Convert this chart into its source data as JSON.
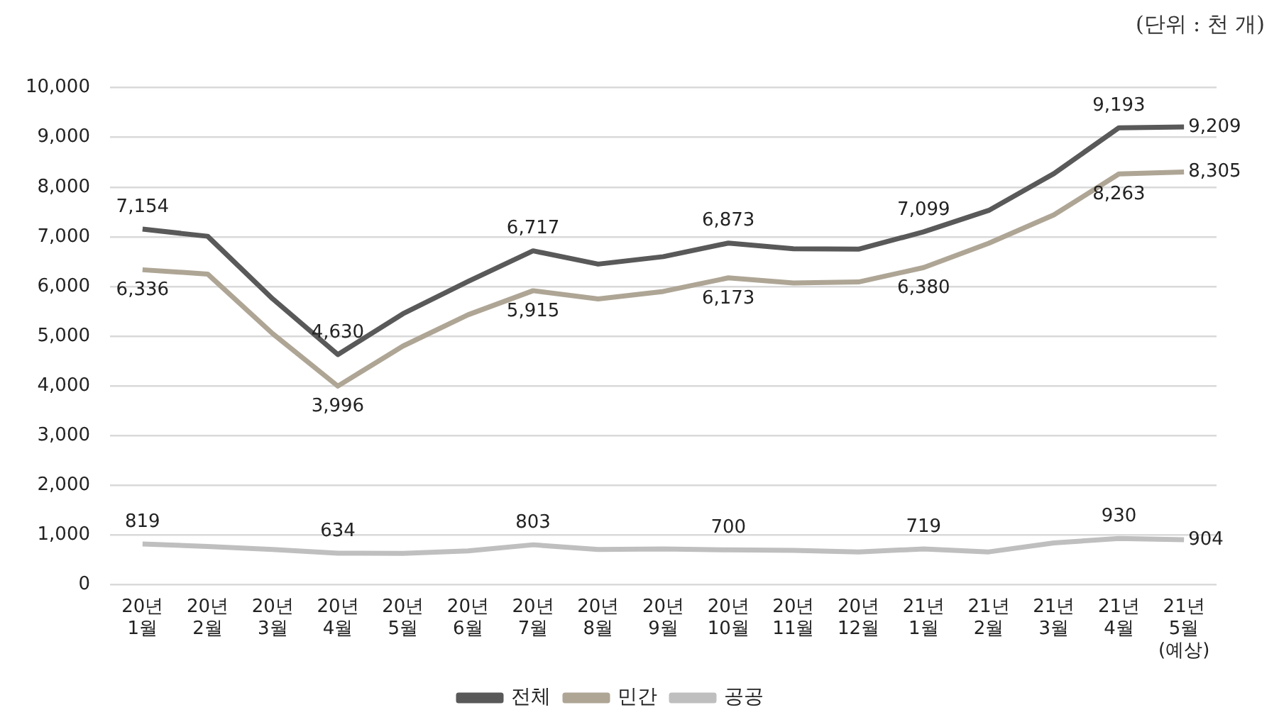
{
  "chart_data": {
    "type": "line",
    "categories": [
      "20년 1월",
      "20년 2월",
      "20년 3월",
      "20년 4월",
      "20년 5월",
      "20년 6월",
      "20년 7월",
      "20년 8월",
      "20년 9월",
      "20년 10월",
      "20년 11월",
      "20년 12월",
      "21년 1월",
      "21년 2월",
      "21년 3월",
      "21년 4월",
      "21년 5월 (예상)"
    ],
    "series": [
      {
        "name": "전체",
        "color": "#595959",
        "values": [
          7154,
          7010,
          5750,
          4630,
          5450,
          6100,
          6717,
          6450,
          6600,
          6873,
          6760,
          6750,
          7099,
          7530,
          8270,
          9193,
          9209
        ],
        "value_labels": [
          "7,154",
          null,
          null,
          "4,630",
          null,
          null,
          "6,717",
          null,
          null,
          "6,873",
          null,
          null,
          "7,099",
          null,
          null,
          "9,193",
          "9,209"
        ]
      },
      {
        "name": "민간",
        "color": "#aea595",
        "values": [
          6336,
          6250,
          5050,
          3996,
          4800,
          5430,
          5915,
          5750,
          5900,
          6173,
          6070,
          6090,
          6380,
          6870,
          7440,
          8263,
          8305
        ],
        "value_labels": [
          "6,336",
          null,
          null,
          "3,996",
          null,
          null,
          "5,915",
          null,
          null,
          "6,173",
          null,
          null,
          "6,380",
          null,
          null,
          "8,263",
          "8,305"
        ]
      },
      {
        "name": "공공",
        "color": "#bfbfbf",
        "values": [
          819,
          770,
          710,
          634,
          630,
          680,
          803,
          710,
          720,
          700,
          690,
          660,
          719,
          660,
          840,
          930,
          904
        ],
        "value_labels": [
          "819",
          null,
          null,
          "634",
          null,
          null,
          "803",
          null,
          null,
          "700",
          null,
          null,
          "719",
          null,
          null,
          "930",
          "904"
        ]
      }
    ],
    "ylim": [
      0,
      10000
    ],
    "yticks": [
      {
        "value": 0,
        "label": "0"
      },
      {
        "value": 1000,
        "label": "1,000"
      },
      {
        "value": 2000,
        "label": "2,000"
      },
      {
        "value": 3000,
        "label": "3,000"
      },
      {
        "value": 4000,
        "label": "4,000"
      },
      {
        "value": 5000,
        "label": "5,000"
      },
      {
        "value": 6000,
        "label": "6,000"
      },
      {
        "value": 7000,
        "label": "7,000"
      },
      {
        "value": 8000,
        "label": "8,000"
      },
      {
        "value": 9000,
        "label": "9,000"
      },
      {
        "value": 10000,
        "label": "10,000"
      }
    ],
    "grid": "y",
    "legend": "bottom",
    "marker": "none",
    "line_style": "solid",
    "annotations": [
      "(단위 : 천 개)"
    ]
  }
}
